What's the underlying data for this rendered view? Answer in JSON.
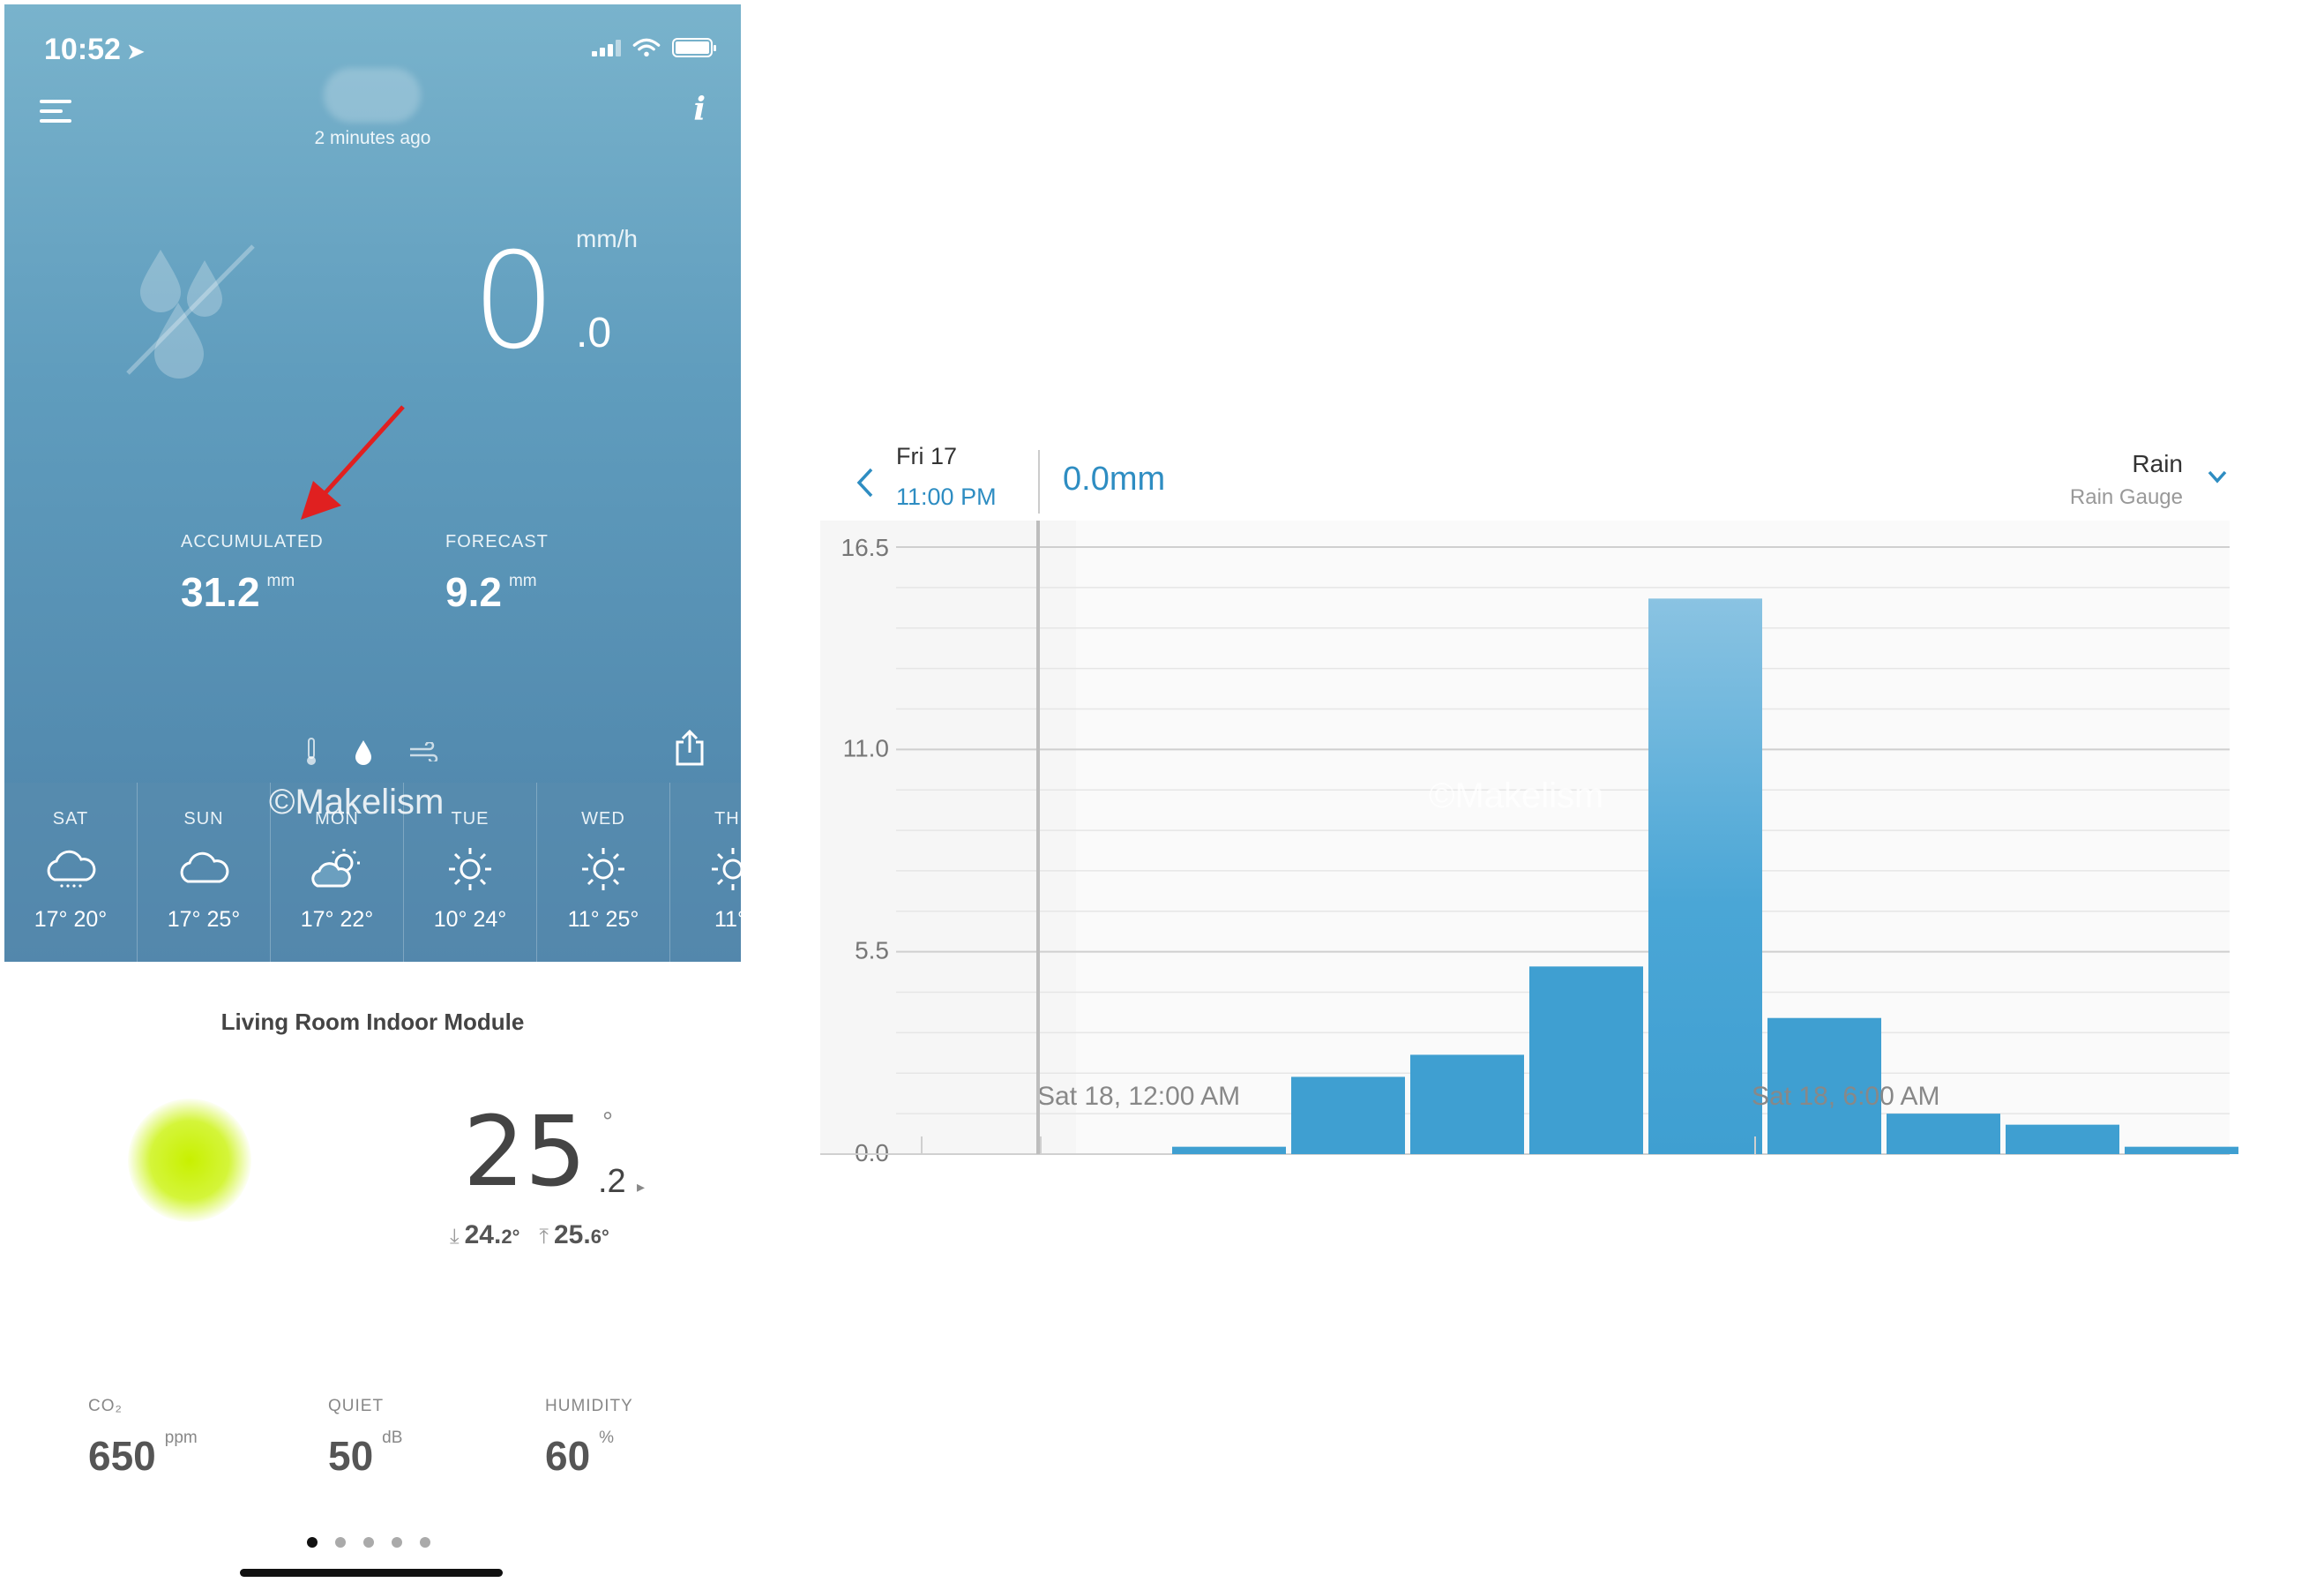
{
  "status": {
    "time": "10:52"
  },
  "weather": {
    "updated": "2 minutes ago",
    "rate_unit": "mm/h",
    "rate_int": "0",
    "rate_dec": ".0",
    "accumulated": {
      "label": "ACCUMULATED",
      "value": "31.2",
      "unit": "mm"
    },
    "forecast": {
      "label": "FORECAST",
      "value": "9.2",
      "unit": "mm"
    },
    "watermark": "©Makelism",
    "days": [
      {
        "name": "SAT",
        "temps": "17° 20°",
        "icon": "cloud-rain-icon"
      },
      {
        "name": "SUN",
        "temps": "17° 25°",
        "icon": "cloud-icon"
      },
      {
        "name": "MON",
        "temps": "17° 22°",
        "icon": "partly-cloudy-icon"
      },
      {
        "name": "TUE",
        "temps": "10° 24°",
        "icon": "sun-icon"
      },
      {
        "name": "WED",
        "temps": "11° 25°",
        "icon": "sun-icon"
      },
      {
        "name": "TH",
        "temps": "11°",
        "icon": "sun-icon"
      }
    ]
  },
  "indoor": {
    "title": "Living Room Indoor Module",
    "temp_int": "25",
    "temp_dec": ".2",
    "temp_deg": "°",
    "min": "24.",
    "min_dec": "2°",
    "max": "25.",
    "max_dec": "6°",
    "co2": {
      "label": "CO₂",
      "value": "650",
      "unit": "ppm"
    },
    "quiet": {
      "label": "QUIET",
      "value": "50",
      "unit": "dB"
    },
    "humidity": {
      "label": "HUMIDITY",
      "value": "60",
      "unit": "%"
    }
  },
  "chart_header": {
    "date": "Fri 17",
    "time": "11:00 PM",
    "value": "0.0mm",
    "metric": "Rain",
    "source": "Rain Gauge"
  },
  "chart_data": {
    "type": "bar",
    "y_ticks": [
      "16.5",
      "11.0",
      "5.5",
      "0.0"
    ],
    "ylim": [
      0,
      16.5
    ],
    "x_labels": [
      {
        "text": "Sat 18, 12:00 AM",
        "at_hour": 1
      },
      {
        "text": "Sat 18, 6:00 AM",
        "at_hour": 7
      }
    ],
    "hours": [
      -1,
      0,
      1,
      2,
      3,
      4,
      5,
      6,
      7,
      8,
      9,
      10
    ],
    "values": [
      0,
      0,
      0.2,
      2.1,
      2.7,
      5.1,
      15.1,
      3.7,
      1.1,
      0.8,
      0.2,
      0
    ],
    "bar_color": "#3f9fd1",
    "watermark": "©Makelism"
  },
  "pager": {
    "count": 5,
    "active": 0
  }
}
